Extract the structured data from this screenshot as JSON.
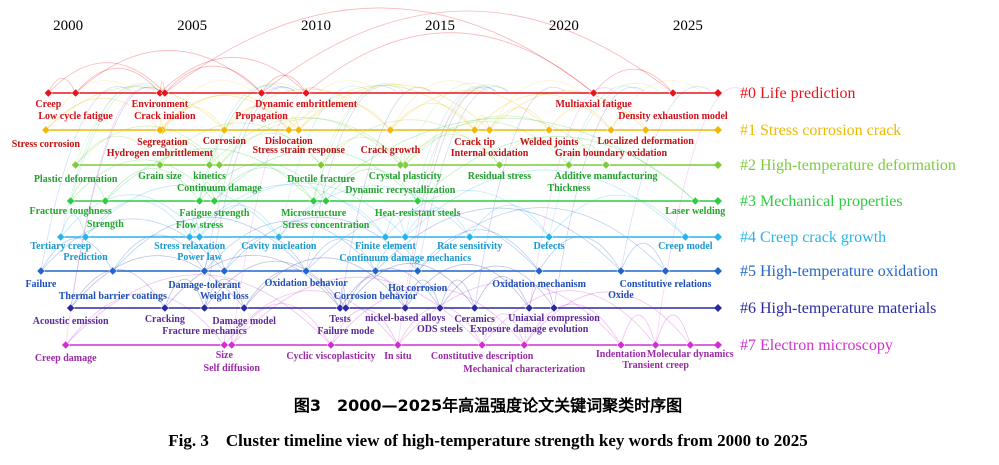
{
  "chart_data": {
    "type": "timeline",
    "xlim": [
      1998.5,
      2026.5
    ],
    "xticks": [
      2000,
      2005,
      2010,
      2015,
      2020,
      2025
    ],
    "series": [
      {
        "name": "#0 Life prediction",
        "color": "#e8141c",
        "label_color": "#d01018",
        "keywords": [
          {
            "label": "Creep",
            "x": 1999.2
          },
          {
            "label": "Low cycle fatigue",
            "x": 2000.3
          },
          {
            "label": "Environment",
            "x": 2003.7
          },
          {
            "label": "Crack inialion",
            "x": 2003.9
          },
          {
            "label": "Propagation",
            "x": 2007.8
          },
          {
            "label": "Dynamic embrittlement",
            "x": 2009.6
          },
          {
            "label": "Multiaxial fatigue",
            "x": 2021.2
          },
          {
            "label": "Density exhaustion model",
            "x": 2024.4
          }
        ]
      },
      {
        "name": "#1 Stress corrosion crack",
        "color": "#f0b800",
        "label_color": "#c01010",
        "keywords": [
          {
            "label": "Stress corrosion",
            "x": 1999.1
          },
          {
            "label": "Segregation",
            "x": 2003.8
          },
          {
            "label": "Corrosion",
            "x": 2006.3
          },
          {
            "label": "Dislocation",
            "x": 2008.9
          },
          {
            "label": "Hydrogen embrittlement",
            "x": 2003.7
          },
          {
            "label": "Stress strain response",
            "x": 2009.3
          },
          {
            "label": "Crack growth",
            "x": 2013
          },
          {
            "label": "Crack tip",
            "x": 2016.4
          },
          {
            "label": "Internal oxidation",
            "x": 2017
          },
          {
            "label": "Welded joints",
            "x": 2019.4
          },
          {
            "label": "Localized deformation",
            "x": 2023.3
          },
          {
            "label": "Grain boundary oxidation",
            "x": 2021.9
          }
        ]
      },
      {
        "name": "#2 High-temperature deformation",
        "color": "#7ccc3c",
        "label_color": "#22a030",
        "keywords": [
          {
            "label": "Plastic deformation",
            "x": 2000.3
          },
          {
            "label": "Grain size",
            "x": 2003.7
          },
          {
            "label": "kinetics",
            "x": 2005.7
          },
          {
            "label": "Continuum damage",
            "x": 2006.1
          },
          {
            "label": "Ductile fracture",
            "x": 2010.2
          },
          {
            "label": "Crystal plasticity",
            "x": 2013.6
          },
          {
            "label": "Residual stress",
            "x": 2017.4
          },
          {
            "label": "Dynamic recrystallization",
            "x": 2013.4
          },
          {
            "label": "Additive manufacturing",
            "x": 2021.7
          },
          {
            "label": "Thickness",
            "x": 2020.2
          }
        ]
      },
      {
        "name": "#3 Mechanical properties",
        "color": "#2ecc40",
        "label_color": "#20a828",
        "keywords": [
          {
            "label": "Fracture toughness",
            "x": 2000.1
          },
          {
            "label": "Strength",
            "x": 2001.5
          },
          {
            "label": "Fatigue strength",
            "x": 2005.9
          },
          {
            "label": "Flow stress",
            "x": 2005.3
          },
          {
            "label": "Microstructure",
            "x": 2009.9
          },
          {
            "label": "Stress concentration",
            "x": 2010.4
          },
          {
            "label": "Heat-resistant steels",
            "x": 2014.1
          },
          {
            "label": "Laser welding",
            "x": 2025.3
          }
        ]
      },
      {
        "name": "#4 Creep crack growth",
        "color": "#28b4e8",
        "label_color": "#1a98d0",
        "keywords": [
          {
            "label": "Tertiary creep",
            "x": 1999.7
          },
          {
            "label": "Prediction",
            "x": 2000.7
          },
          {
            "label": "Stress relaxation",
            "x": 2004.9
          },
          {
            "label": "Power law",
            "x": 2005.3
          },
          {
            "label": "Cavity nucleation",
            "x": 2008.5
          },
          {
            "label": "Finite element",
            "x": 2012.8
          },
          {
            "label": "Continuum damage mechanics",
            "x": 2013.6
          },
          {
            "label": "Rate sensitivity",
            "x": 2016.2
          },
          {
            "label": "Defects",
            "x": 2019.4
          },
          {
            "label": "Creep model",
            "x": 2024.9
          }
        ]
      },
      {
        "name": "#5 High-temperature oxidation",
        "color": "#2266cc",
        "label_color": "#1f4fb8",
        "keywords": [
          {
            "label": "Failure",
            "x": 1998.9
          },
          {
            "label": "Thermal barrier coatings",
            "x": 2001.8
          },
          {
            "label": "Damage-tolerant",
            "x": 2005.5
          },
          {
            "label": "Weight loss",
            "x": 2006.3
          },
          {
            "label": "Oxidation behavior",
            "x": 2009.6
          },
          {
            "label": "Corrosion behavior",
            "x": 2012.4
          },
          {
            "label": "Hot corrosion",
            "x": 2014.1
          },
          {
            "label": "Oxidation mechanism",
            "x": 2019
          },
          {
            "label": "Oxide",
            "x": 2022.3
          },
          {
            "label": "Constitutive relations",
            "x": 2024.1
          }
        ]
      },
      {
        "name": "#6 High-temperature materials",
        "color": "#2a2aa0",
        "label_color": "#5a2a9a",
        "keywords": [
          {
            "label": "Acoustic emission",
            "x": 2000.1
          },
          {
            "label": "Cracking",
            "x": 2003.9
          },
          {
            "label": "Fracture mechanics",
            "x": 2005.5
          },
          {
            "label": "Damage model",
            "x": 2007.1
          },
          {
            "label": "Tests",
            "x": 2010.97
          },
          {
            "label": "Failure mode",
            "x": 2011.2
          },
          {
            "label": "nickel-based alloys",
            "x": 2013.6
          },
          {
            "label": "Ceramics",
            "x": 2016.4
          },
          {
            "label": "Uniaxial compression",
            "x": 2019.6
          },
          {
            "label": "ODS steels",
            "x": 2015
          },
          {
            "label": "Exposure damage evolution",
            "x": 2018.6
          }
        ]
      },
      {
        "name": "#7 Electron microscopy",
        "color": "#d030d0",
        "label_color": "#9a2aa8",
        "keywords": [
          {
            "label": "Creep damage",
            "x": 1999.9
          },
          {
            "label": "Size",
            "x": 2006.3
          },
          {
            "label": "Self diffusion",
            "x": 2006.6
          },
          {
            "label": "Cyclic viscoplasticity",
            "x": 2010.6
          },
          {
            "label": "In situ",
            "x": 2013.3
          },
          {
            "label": "Constitutive description",
            "x": 2016.7
          },
          {
            "label": "Mechanical characterization",
            "x": 2018.4
          },
          {
            "label": "Indentation",
            "x": 2022.3
          },
          {
            "label": "Molecular dynamics",
            "x": 2025.1
          },
          {
            "label": "Transient creep",
            "x": 2023.7
          }
        ]
      }
    ],
    "caption_cn": "图3　2000—2025年高温强度论文关键词聚类时序图",
    "caption_en": "Fig. 3　Cluster timeline view of high-temperature strength key words from 2000 to 2025"
  }
}
